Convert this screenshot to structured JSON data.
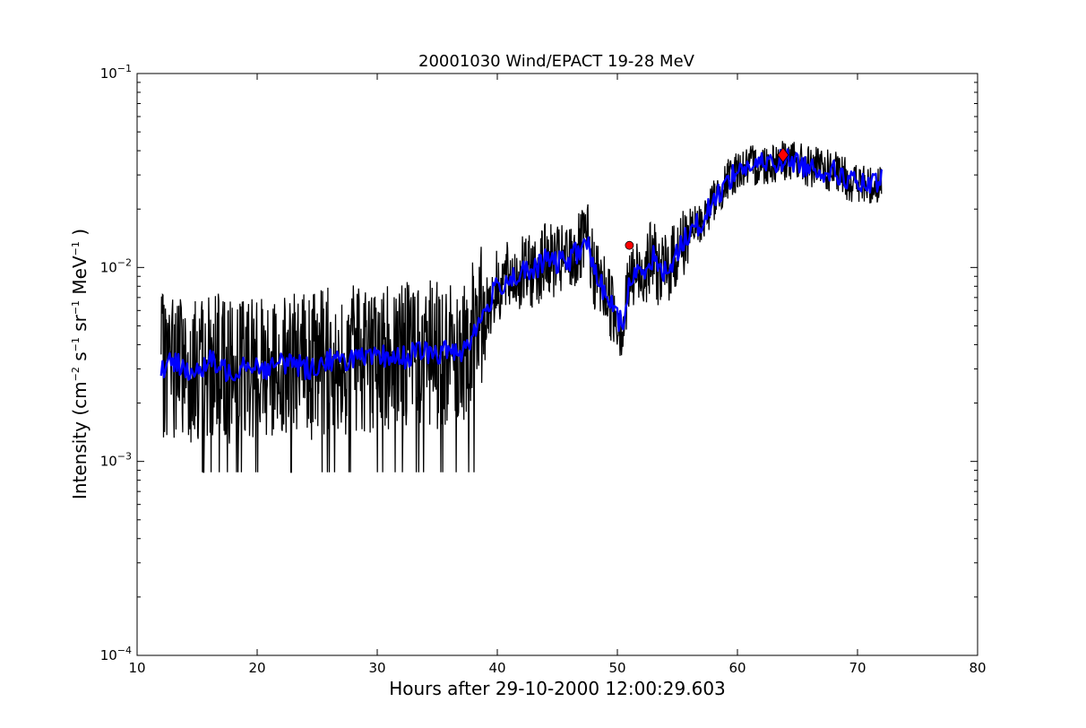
{
  "chart_data": {
    "type": "line",
    "title": "20001030 Wind/EPACT 19-28 MeV",
    "xlabel": "Hours after 29-10-2000 12:00:29.603",
    "ylabel": {
      "prefix": "Intensity (cm",
      "sup1": "−2",
      "mid1": " s",
      "sup2": "−1",
      "mid2": " sr",
      "sup3": "−1",
      "mid3": " MeV",
      "sup4": "−1",
      "suffix": " )"
    },
    "xlim": [
      10,
      80
    ],
    "ylim": [
      0.0001,
      0.1
    ],
    "yscale": "log",
    "grid": false,
    "xticks": [
      10,
      20,
      30,
      40,
      50,
      60,
      70,
      80
    ],
    "xtick_labels": [
      "10",
      "20",
      "30",
      "40",
      "50",
      "60",
      "70",
      "80"
    ],
    "yticks": [
      {
        "value": 0.0001,
        "base": "10",
        "exp": "−4"
      },
      {
        "value": 0.001,
        "base": "10",
        "exp": "−3"
      },
      {
        "value": 0.01,
        "base": "10",
        "exp": "−2"
      },
      {
        "value": 0.1,
        "base": "10",
        "exp": "−1"
      }
    ],
    "colors": {
      "raw": "#000000",
      "smoothed": "#0000ff",
      "markers": "#ff0000"
    },
    "series": [
      {
        "style": "raw",
        "x": [
          12.0,
          13.0,
          14.0,
          15.0,
          16.0,
          17.0,
          18.0,
          19.0,
          20.0,
          21.0,
          22.0,
          23.0,
          24.0,
          25.0,
          26.0,
          27.0,
          28.0,
          29.0,
          30.0,
          31.0,
          32.0,
          33.0,
          34.0,
          35.0,
          36.0,
          37.0,
          38.0,
          39.0,
          40.0,
          41.0,
          42.0,
          43.0,
          44.0,
          45.0,
          46.0,
          47.0,
          47.5,
          48.0,
          49.0,
          50.0,
          50.5,
          51.0,
          52.0,
          53.0,
          53.5,
          54.0,
          55.0,
          56.0,
          57.0,
          58.0,
          59.0,
          60.0,
          61.0,
          62.0,
          63.0,
          64.0,
          65.0,
          66.0,
          67.0,
          68.0,
          69.0,
          70.0,
          71.0,
          72.0
        ],
        "y": [
          0.003,
          0.0032,
          0.0031,
          0.0028,
          0.0033,
          0.003,
          0.0029,
          0.0033,
          0.0031,
          0.003,
          0.0032,
          0.0033,
          0.003,
          0.0031,
          0.0034,
          0.0032,
          0.0035,
          0.0033,
          0.0034,
          0.0035,
          0.0034,
          0.0036,
          0.0037,
          0.0035,
          0.0038,
          0.0037,
          0.0045,
          0.006,
          0.008,
          0.0088,
          0.0093,
          0.0095,
          0.011,
          0.0105,
          0.011,
          0.0125,
          0.014,
          0.0095,
          0.0075,
          0.0055,
          0.005,
          0.0085,
          0.0095,
          0.0115,
          0.0095,
          0.0095,
          0.012,
          0.0155,
          0.017,
          0.022,
          0.027,
          0.032,
          0.033,
          0.034,
          0.035,
          0.036,
          0.0345,
          0.033,
          0.032,
          0.031,
          0.029,
          0.027,
          0.026,
          0.028
        ]
      },
      {
        "style": "smoothed",
        "x": [
          12.0,
          13.0,
          14.0,
          15.0,
          16.0,
          17.0,
          18.0,
          19.0,
          20.0,
          21.0,
          22.0,
          23.0,
          24.0,
          25.0,
          26.0,
          27.0,
          28.0,
          29.0,
          30.0,
          31.0,
          32.0,
          33.0,
          34.0,
          35.0,
          36.0,
          37.0,
          38.0,
          39.0,
          40.0,
          41.0,
          42.0,
          43.0,
          44.0,
          45.0,
          46.0,
          47.0,
          47.5,
          48.0,
          49.0,
          50.0,
          50.5,
          51.0,
          52.0,
          53.0,
          53.5,
          54.0,
          55.0,
          56.0,
          57.0,
          58.0,
          59.0,
          60.0,
          61.0,
          62.0,
          63.0,
          64.0,
          65.0,
          66.0,
          67.0,
          68.0,
          69.0,
          70.0,
          71.0,
          72.0
        ],
        "y": [
          0.003,
          0.0032,
          0.0031,
          0.0028,
          0.0033,
          0.003,
          0.0029,
          0.0033,
          0.0031,
          0.003,
          0.0032,
          0.0033,
          0.003,
          0.0031,
          0.0034,
          0.0032,
          0.0035,
          0.0033,
          0.0034,
          0.0035,
          0.0034,
          0.0036,
          0.0037,
          0.0035,
          0.0038,
          0.0037,
          0.0045,
          0.006,
          0.008,
          0.0088,
          0.0093,
          0.0095,
          0.011,
          0.0105,
          0.011,
          0.0125,
          0.014,
          0.0095,
          0.0075,
          0.0055,
          0.005,
          0.0085,
          0.0095,
          0.0115,
          0.0095,
          0.0095,
          0.012,
          0.0155,
          0.017,
          0.022,
          0.027,
          0.032,
          0.033,
          0.034,
          0.035,
          0.036,
          0.0345,
          0.033,
          0.032,
          0.031,
          0.029,
          0.027,
          0.026,
          0.028
        ]
      }
    ],
    "markers": [
      {
        "x": 51.0,
        "y": 0.013,
        "shape": "circle"
      },
      {
        "x": 63.8,
        "y": 0.038,
        "shape": "diamond"
      }
    ]
  }
}
